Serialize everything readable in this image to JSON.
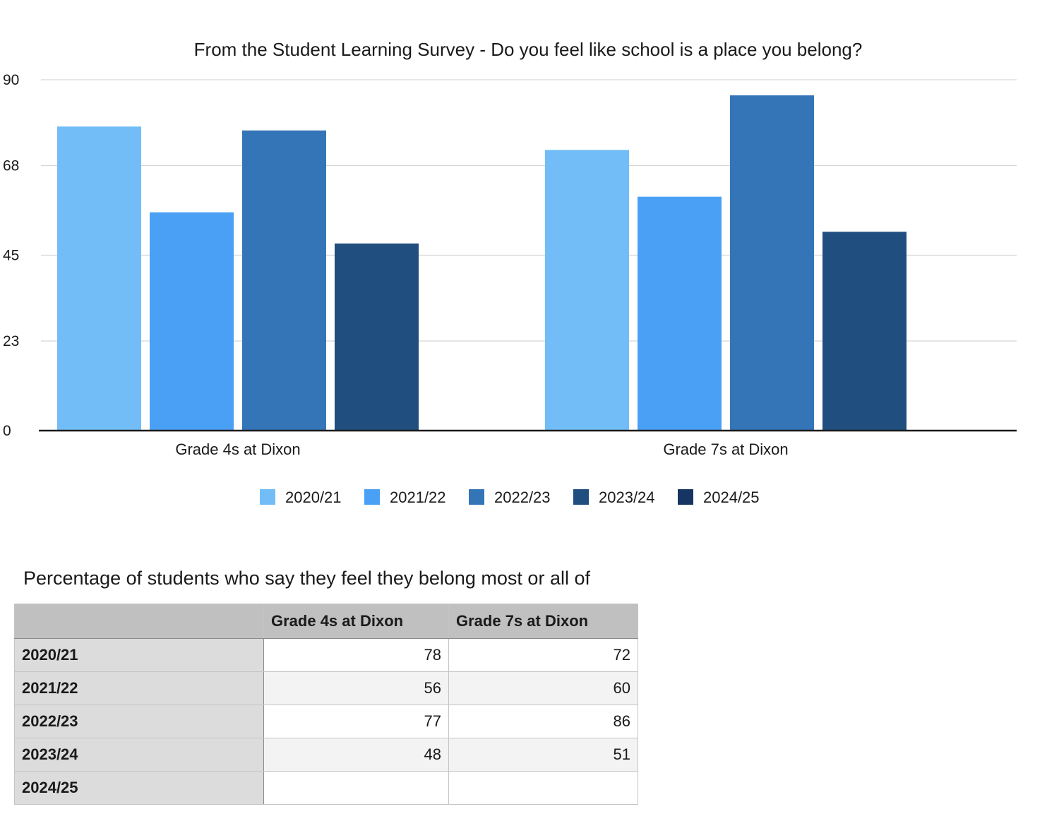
{
  "chart_data": {
    "type": "bar",
    "title": "From the Student Learning Survey - Do you feel like school is a place you belong?",
    "categories": [
      "Grade 4s at Dixon",
      "Grade 7s at Dixon"
    ],
    "series": [
      {
        "name": "2020/21",
        "values": [
          78,
          72
        ],
        "color": "#72bdf7"
      },
      {
        "name": "2021/22",
        "values": [
          56,
          60
        ],
        "color": "#4aa0f4"
      },
      {
        "name": "2022/23",
        "values": [
          77,
          86
        ],
        "color": "#3475b7"
      },
      {
        "name": "2023/24",
        "values": [
          48,
          51
        ],
        "color": "#204e7e"
      },
      {
        "name": "2024/25",
        "values": [
          null,
          null
        ],
        "color": "#163562"
      }
    ],
    "yticks": [
      "0",
      "23",
      "45",
      "68",
      "90"
    ],
    "ylim": [
      0,
      90
    ],
    "grid": true,
    "legend_position": "bottom"
  },
  "table": {
    "title": "Percentage of students who say they feel they belong most or all of",
    "header": [
      "",
      "Grade 4s at Dixon",
      "Grade 7s at Dixon"
    ],
    "rows": [
      {
        "label": "2020/21",
        "cells": [
          "78",
          "72"
        ]
      },
      {
        "label": "2021/22",
        "cells": [
          "56",
          "60"
        ]
      },
      {
        "label": "2022/23",
        "cells": [
          "77",
          "86"
        ]
      },
      {
        "label": "2023/24",
        "cells": [
          "48",
          "51"
        ]
      },
      {
        "label": "2024/25",
        "cells": [
          "",
          ""
        ]
      }
    ]
  }
}
